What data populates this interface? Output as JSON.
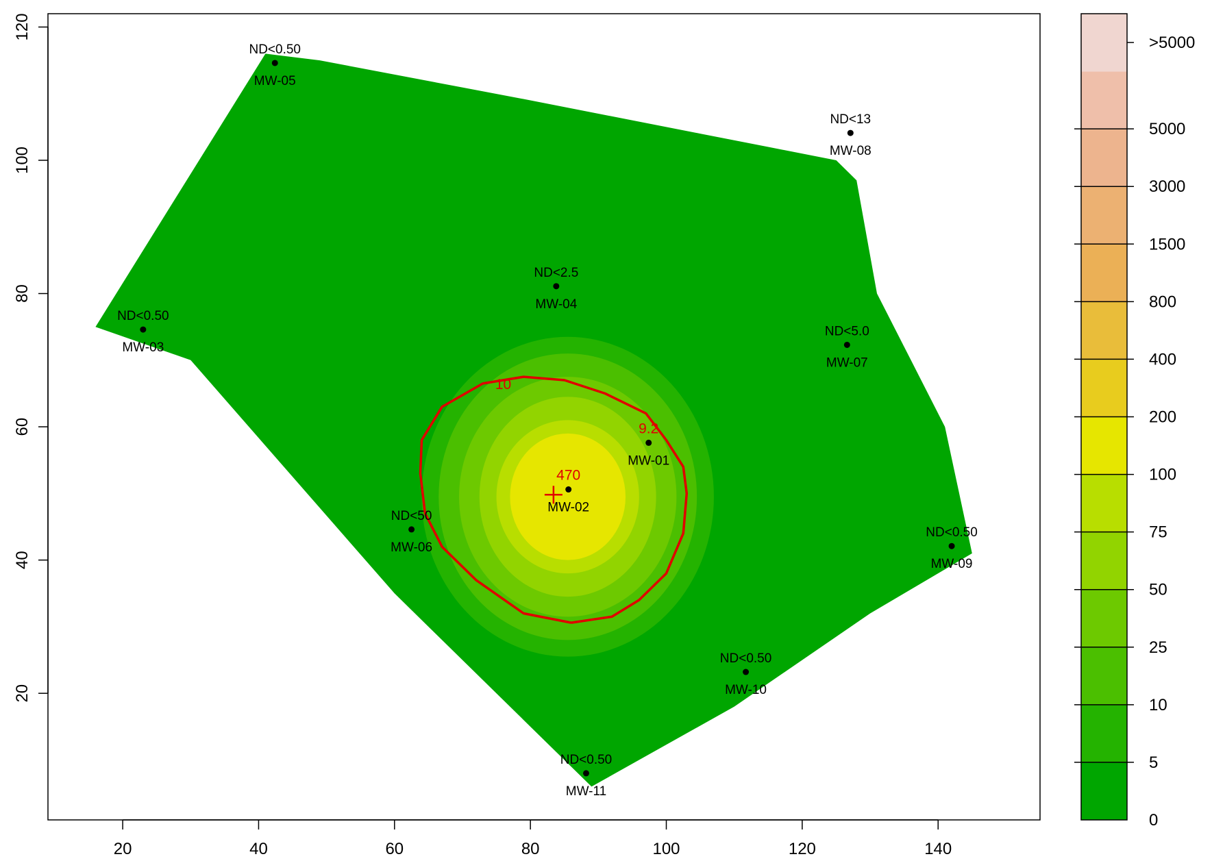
{
  "chart_data": {
    "type": "contour",
    "title": "",
    "xlabel": "",
    "ylabel": "",
    "xlim": [
      9,
      155
    ],
    "ylim": [
      1,
      122
    ],
    "x_ticks": [
      20,
      40,
      60,
      80,
      100,
      120,
      140
    ],
    "y_ticks": [
      20,
      40,
      60,
      80,
      100,
      120
    ],
    "legend": {
      "position": "right",
      "title": "",
      "levels": [
        "0",
        "5",
        "10",
        "25",
        "50",
        "75",
        "100",
        "200",
        "400",
        "800",
        "1500",
        "3000",
        "5000",
        ">5000"
      ],
      "colors": [
        "#00a600",
        "#24b300",
        "#4bbf00",
        "#6dc900",
        "#92d400",
        "#b8de00",
        "#e6e600",
        "#e8cc1e",
        "#e9bd3a",
        "#ebb056",
        "#ecb172",
        "#edb48e",
        "#efbfaa",
        "#f0d6d0"
      ]
    },
    "domain_polygon": [
      [
        16,
        75
      ],
      [
        41,
        116
      ],
      [
        49,
        115
      ],
      [
        80,
        109
      ],
      [
        105,
        104
      ],
      [
        115,
        102
      ],
      [
        125,
        100
      ],
      [
        128,
        97
      ],
      [
        131,
        80
      ],
      [
        136,
        70
      ],
      [
        141,
        60
      ],
      [
        145,
        41
      ],
      [
        130,
        32
      ],
      [
        110,
        18
      ],
      [
        89,
        6
      ],
      [
        60,
        35
      ],
      [
        30,
        70
      ]
    ],
    "wells": [
      {
        "id": "MW-01",
        "x": 97.4,
        "y": 57.6,
        "value": "9.2"
      },
      {
        "id": "MW-02",
        "x": 85.6,
        "y": 50.6,
        "value": "470"
      },
      {
        "id": "MW-03",
        "x": 23.0,
        "y": 74.6,
        "value": "ND<0.50"
      },
      {
        "id": "MW-04",
        "x": 83.8,
        "y": 81.1,
        "value": "ND<2.5"
      },
      {
        "id": "MW-05",
        "x": 42.4,
        "y": 114.6,
        "value": "ND<0.50"
      },
      {
        "id": "MW-06",
        "x": 62.5,
        "y": 44.6,
        "value": "ND<50"
      },
      {
        "id": "MW-07",
        "x": 126.6,
        "y": 72.3,
        "value": "ND<5.0"
      },
      {
        "id": "MW-08",
        "x": 127.1,
        "y": 104.1,
        "value": "ND<13"
      },
      {
        "id": "MW-09",
        "x": 142.0,
        "y": 42.1,
        "value": "ND<0.50"
      },
      {
        "id": "MW-10",
        "x": 111.7,
        "y": 23.2,
        "value": "ND<0.50"
      },
      {
        "id": "MW-11",
        "x": 88.2,
        "y": 8.0,
        "value": "ND<0.50"
      }
    ],
    "max_marker": {
      "x": 83.4,
      "y": 49.8
    },
    "plume": {
      "center": [
        85.5,
        49.5
      ],
      "rings": [
        {
          "level": 5,
          "rx": 21.5,
          "ry": 24.0,
          "color": "#24b300"
        },
        {
          "level": 10,
          "rx": 19.0,
          "ry": 21.5,
          "color": "#4bbf00"
        },
        {
          "level": 25,
          "rx": 16.0,
          "ry": 18.0,
          "color": "#6dc900"
        },
        {
          "level": 50,
          "rx": 13.0,
          "ry": 15.0,
          "color": "#92d400"
        },
        {
          "level": 75,
          "rx": 10.5,
          "ry": 11.5,
          "color": "#b8de00"
        },
        {
          "level": 100,
          "rx": 8.5,
          "ry": 9.5,
          "color": "#e6e600"
        }
      ]
    },
    "contour_10": {
      "label": "10",
      "color": "#e00000",
      "points": [
        [
          86,
          30.6
        ],
        [
          92,
          31.5
        ],
        [
          96,
          34
        ],
        [
          100,
          38
        ],
        [
          102.5,
          44
        ],
        [
          103,
          50
        ],
        [
          102.5,
          54
        ],
        [
          100,
          58
        ],
        [
          97,
          62
        ],
        [
          91,
          65
        ],
        [
          85,
          67
        ],
        [
          79,
          67.5
        ],
        [
          73,
          66.5
        ],
        [
          67,
          63
        ],
        [
          64,
          58
        ],
        [
          63.8,
          53
        ],
        [
          64.5,
          47
        ],
        [
          67,
          42
        ],
        [
          72,
          37
        ],
        [
          79,
          32
        ],
        [
          86,
          30.6
        ]
      ]
    }
  }
}
